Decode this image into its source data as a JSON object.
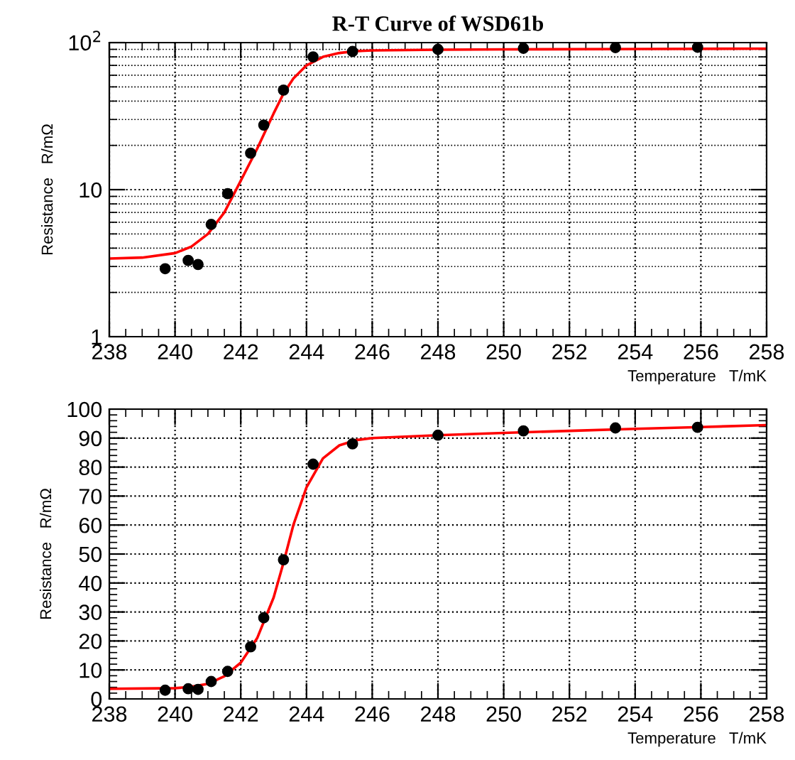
{
  "chart_data": [
    {
      "type": "scatter",
      "title": "R-T Curve of WSD61b",
      "xlabel": "Temperature   T/mK",
      "ylabel": "Resistance   R/mΩ",
      "log": "y",
      "grid": true,
      "xlim": [
        238,
        258
      ],
      "xticks": [
        238,
        240,
        242,
        244,
        246,
        248,
        250,
        252,
        254,
        256,
        258
      ],
      "ylim": [
        1,
        100
      ],
      "yticks": [
        1,
        10,
        {
          "value": 100,
          "label": "10$^{2}$"
        }
      ],
      "series": [
        {
          "marker": "circle",
          "color": "#000000",
          "x": [
            239.7,
            240.4,
            240.7,
            241.1,
            241.6,
            242.3,
            242.7,
            243.3,
            244.2,
            245.4,
            248.0,
            250.6,
            253.4,
            255.9
          ],
          "values": [
            2.9,
            3.3,
            3.1,
            5.8,
            9.4,
            17.7,
            27.5,
            47.5,
            80,
            87,
            90,
            91.5,
            92.5,
            93
          ]
        },
        {
          "type": "line",
          "color": "#ff0000",
          "line_style": "solid",
          "x": [
            238,
            239,
            240,
            240.5,
            241,
            241.5,
            242,
            242.5,
            243,
            243.3,
            243.6,
            244,
            244.5,
            245,
            245.5,
            246,
            248,
            250,
            254,
            258
          ],
          "values": [
            3.4,
            3.45,
            3.7,
            4.1,
            5,
            7,
            11.5,
            19,
            33,
            45,
            57,
            70,
            80,
            85,
            87.5,
            88.5,
            89.5,
            90,
            90.5,
            91
          ]
        }
      ]
    },
    {
      "type": "scatter",
      "xlabel": "Temperature   T/mK",
      "ylabel": "Resistance   R/mΩ",
      "grid": true,
      "xlim": [
        238,
        258
      ],
      "xticks": [
        238,
        240,
        242,
        244,
        246,
        248,
        250,
        252,
        254,
        256,
        258
      ],
      "ylim": [
        0,
        100
      ],
      "yticks": [
        0,
        10,
        20,
        30,
        40,
        50,
        60,
        70,
        80,
        90,
        100
      ],
      "series": [
        {
          "marker": "circle",
          "color": "#000000",
          "x": [
            239.7,
            240.4,
            240.7,
            241.1,
            241.6,
            242.3,
            242.7,
            243.3,
            244.2,
            245.4,
            248.0,
            250.6,
            253.4,
            255.9
          ],
          "values": [
            3,
            3.5,
            3.3,
            6,
            9.5,
            18,
            28,
            48,
            81,
            88,
            91,
            92.5,
            93.5,
            93.7
          ]
        },
        {
          "type": "line",
          "color": "#ff0000",
          "line_style": "solid",
          "x": [
            238,
            240,
            240.5,
            241,
            241.5,
            242,
            242.5,
            243,
            243.3,
            243.6,
            244,
            244.5,
            245,
            245.5,
            246,
            248,
            250,
            252,
            254,
            256,
            258
          ],
          "values": [
            3.5,
            3.7,
            4.2,
            5.2,
            7.8,
            12.5,
            21,
            35,
            47,
            60,
            73,
            83,
            87.5,
            89.3,
            90,
            91,
            91.8,
            92.5,
            93.2,
            93.8,
            94.5
          ]
        }
      ]
    }
  ]
}
